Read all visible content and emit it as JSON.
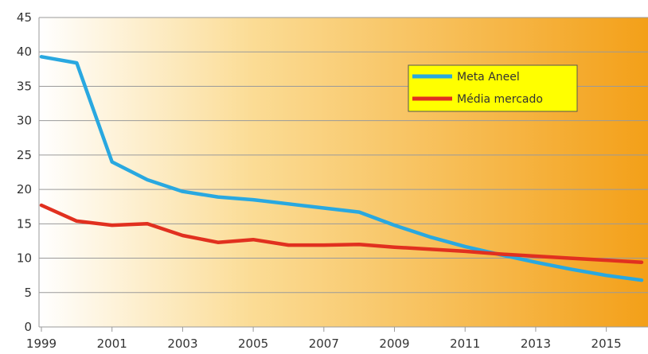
{
  "chart_data": {
    "type": "line",
    "title": "",
    "xlabel": "",
    "ylabel": "",
    "xlim": [
      1999,
      2016
    ],
    "ylim": [
      0,
      45
    ],
    "x_ticks": [
      "1999",
      "2001",
      "2003",
      "2005",
      "2007",
      "2009",
      "2011",
      "2013",
      "2015"
    ],
    "y_ticks": [
      "0",
      "5",
      "10",
      "15",
      "20",
      "25",
      "30",
      "35",
      "40",
      "45"
    ],
    "grid": true,
    "legend_position": "top-right",
    "x": [
      1999,
      2000,
      2001,
      2002,
      2003,
      2004,
      2005,
      2006,
      2007,
      2008,
      2009,
      2010,
      2011,
      2012,
      2013,
      2014,
      2015,
      2016
    ],
    "series": [
      {
        "name": "Meta Aneel",
        "color": "#29a8e0",
        "values": [
          39.3,
          38.4,
          24.0,
          21.4,
          19.7,
          18.9,
          18.5,
          17.9,
          17.3,
          16.7,
          14.8,
          13.1,
          11.7,
          10.5,
          9.4,
          8.4,
          7.5,
          6.8
        ]
      },
      {
        "name": "Média mercado",
        "color": "#e1301f",
        "values": [
          17.7,
          15.4,
          14.8,
          15.0,
          13.3,
          12.3,
          12.7,
          11.9,
          11.9,
          12.0,
          11.6,
          11.3,
          11.0,
          10.6,
          10.3,
          10.0,
          9.7,
          9.4
        ]
      }
    ]
  },
  "colors": {
    "gradient_start": "#ffffff",
    "gradient_mid": "#fbdc95",
    "gradient_end": "#f3a019",
    "legend_bg": "#ffff00",
    "grid": "#9a9a9a"
  }
}
